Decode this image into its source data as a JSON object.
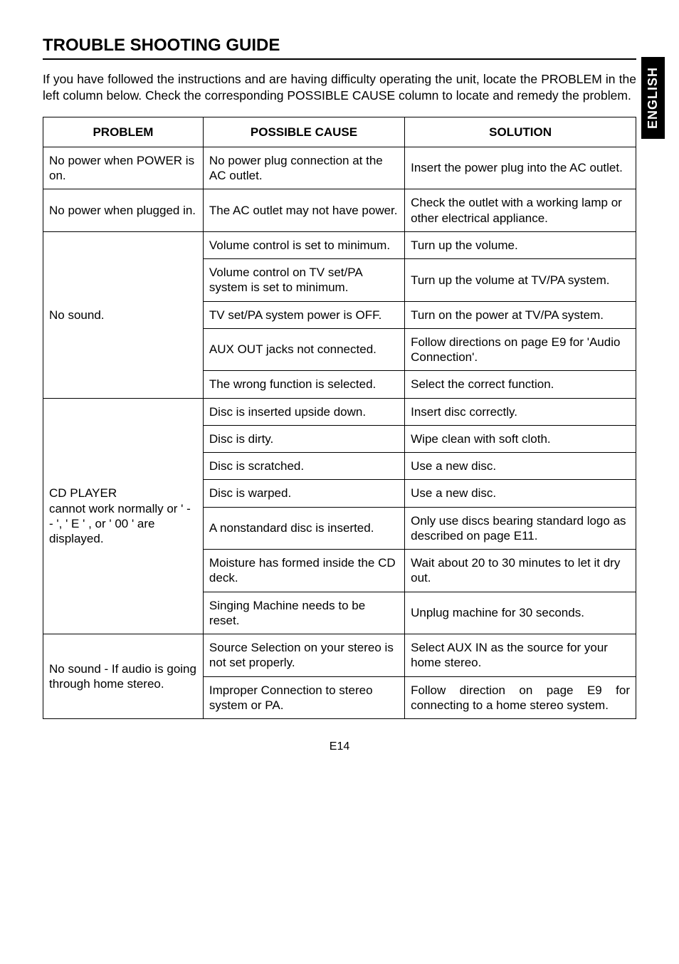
{
  "langTab": "ENGLISH",
  "title": "TROUBLE SHOOTING GUIDE",
  "intro": "If you have followed the instructions and are having difficulty operating the unit, locate the PROBLEM in the left column below. Check the corresponding POSSIBLE CAUSE column to locate and remedy the problem.",
  "headers": {
    "problem": "PROBLEM",
    "cause": "POSSIBLE CAUSE",
    "solution": "SOLUTION"
  },
  "rows": {
    "r1": {
      "problem": "No power when POWER is on.",
      "cause": "No power plug connection at the AC outlet.",
      "solution": "Insert the power plug into the AC outlet."
    },
    "r2": {
      "problem": "No power when plugged in.",
      "cause": "The AC outlet may not have power.",
      "solution": "Check the outlet with a working lamp or other electrical appliance."
    },
    "r3": {
      "problem": "No sound.",
      "causes": {
        "c1": "Volume control is set to minimum.",
        "c2": "Volume control on TV set/PA system is set to minimum.",
        "c3": "TV set/PA system power is OFF.",
        "c4": "AUX OUT jacks not connected.",
        "c5": "The wrong function is selected."
      },
      "solutions": {
        "s1": "Turn up the volume.",
        "s2": "Turn up the volume at TV/PA system.",
        "s3": "Turn on the power at TV/PA system.",
        "s4": "Follow directions on page E9 for 'Audio Connection'.",
        "s5": "Select the correct function."
      }
    },
    "r4": {
      "problem": "CD PLAYER\ncannot work normally or ' - - ', ' E ' , or ' 00 ' are displayed.",
      "causes": {
        "c1": "Disc is inserted upside down.",
        "c2": "Disc is dirty.",
        "c3": "Disc is scratched.",
        "c4": "Disc is warped.",
        "c5": "A nonstandard disc is inserted.",
        "c6": "Moisture has formed inside the CD deck.",
        "c7": "Singing Machine needs to be reset."
      },
      "solutions": {
        "s1": "Insert disc correctly.",
        "s2": "Wipe clean with soft cloth.",
        "s3": "Use a new disc.",
        "s4": "Use a new disc.",
        "s5": "Only use discs bearing standard logo as described on page E11.",
        "s6": "Wait about 20 to 30 minutes to let it dry out.",
        "s7": "Unplug machine for 30 seconds."
      }
    },
    "r5": {
      "problem": "No sound - If audio is going through home stereo.",
      "causes": {
        "c1": "Source Selection on your stereo is not set properly.",
        "c2": "Improper Connection to stereo system or PA."
      },
      "solutions": {
        "s1": "Select AUX IN as the source for your home stereo.",
        "s2": "Follow direction on page E9 for connecting to a home stereo system."
      }
    }
  },
  "pageNum": "E14",
  "style": {
    "font_family": "Arial, Helvetica, sans-serif",
    "body_fontsize": 17,
    "title_fontsize": 24,
    "border_color": "#000000",
    "background_color": "#ffffff",
    "tab_bg": "#000000",
    "tab_color": "#ffffff"
  }
}
